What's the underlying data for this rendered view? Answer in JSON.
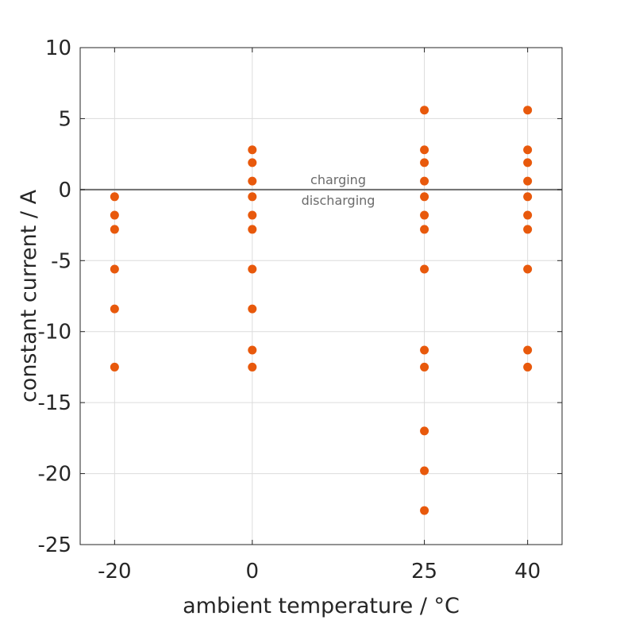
{
  "chart_data": {
    "type": "scatter",
    "xlabel": "ambient temperature / °C",
    "ylabel": "constant current / A",
    "x_ticks": [
      -20,
      0,
      25,
      40
    ],
    "x_tick_labels": [
      "-20",
      "0",
      "25",
      "40"
    ],
    "y_ticks": [
      10,
      5,
      0,
      -5,
      -10,
      -15,
      -20,
      -25
    ],
    "y_tick_labels": [
      "10",
      "5",
      "0",
      "-5",
      "-10",
      "-15",
      "-20",
      "-25"
    ],
    "xlim": [
      -25,
      45
    ],
    "ylim": [
      -25,
      10
    ],
    "grid": true,
    "reference_line": {
      "y": 0,
      "label_above": "charging",
      "label_below": "discharging"
    },
    "marker_color": "#e8590c",
    "series": [
      {
        "x": -20,
        "y": [
          -0.5,
          -1.8,
          -2.8,
          -5.6,
          -8.4,
          -12.5
        ]
      },
      {
        "x": 0,
        "y": [
          2.8,
          1.9,
          0.6,
          -0.5,
          -1.8,
          -2.8,
          -5.6,
          -8.4,
          -11.3,
          -12.5
        ]
      },
      {
        "x": 25,
        "y": [
          5.6,
          2.8,
          1.9,
          0.6,
          -0.5,
          -1.8,
          -2.8,
          -5.6,
          -11.3,
          -12.5,
          -17.0,
          -19.8,
          -22.6
        ]
      },
      {
        "x": 40,
        "y": [
          5.6,
          2.8,
          1.9,
          0.6,
          -0.5,
          -1.8,
          -2.8,
          -5.6,
          -11.3,
          -12.5
        ]
      }
    ]
  }
}
